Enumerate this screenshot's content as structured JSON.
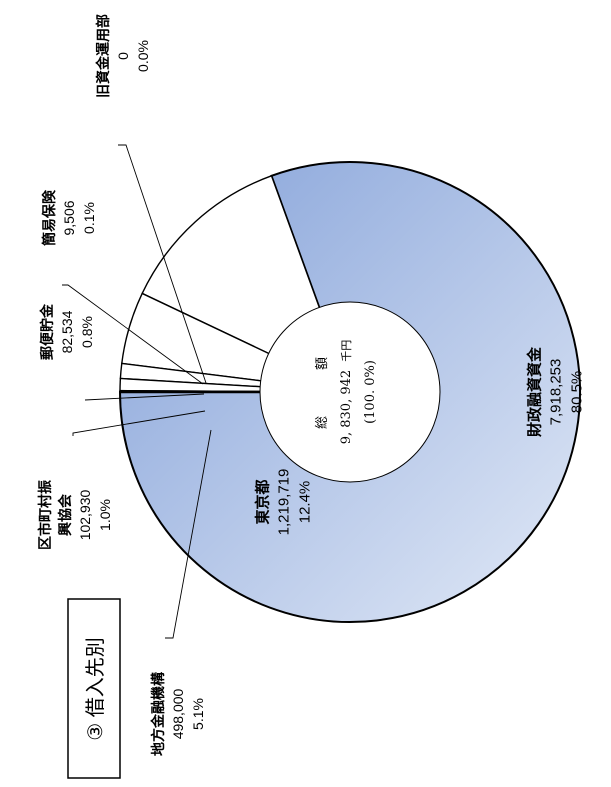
{
  "chart_data": {
    "type": "pie",
    "title": "③ 借入先別",
    "center": {
      "label": "総 額",
      "total": "9, 830, 942",
      "unit": "千円",
      "share": "(100. 0%)"
    },
    "series": [
      {
        "label": "財政融資資金",
        "value": 7918253,
        "value_text": "7,918,253",
        "percent": "80.5%",
        "fill": "gradient"
      },
      {
        "label": "東京都",
        "value": 1219719,
        "value_text": "1,219,719",
        "percent": "12.4%",
        "fill": "#ffffff"
      },
      {
        "label": "地方金融機構",
        "value": 498000,
        "value_text": "498,000",
        "percent": "5.1%",
        "fill": "#ffffff"
      },
      {
        "label_lines": [
          "区市町村振",
          "興協会"
        ],
        "value": 102930,
        "value_text": "102,930",
        "percent": "1.0%",
        "fill": "#ffffff"
      },
      {
        "label": "郵便貯金",
        "value": 82534,
        "value_text": "82,534",
        "percent": "0.8%",
        "fill": "#ffffff"
      },
      {
        "label": "簡易保険",
        "value": 9506,
        "value_text": "9,506",
        "percent": "0.1%",
        "fill": "#ffffff"
      },
      {
        "label": "旧資金運用部",
        "value": 0,
        "value_text": "0",
        "percent": "0.0%",
        "fill": "#ffffff"
      }
    ],
    "colors": {
      "gradient_start": "#8ea9dc",
      "gradient_end": "#e4ebf7",
      "stroke": "#000000"
    }
  }
}
